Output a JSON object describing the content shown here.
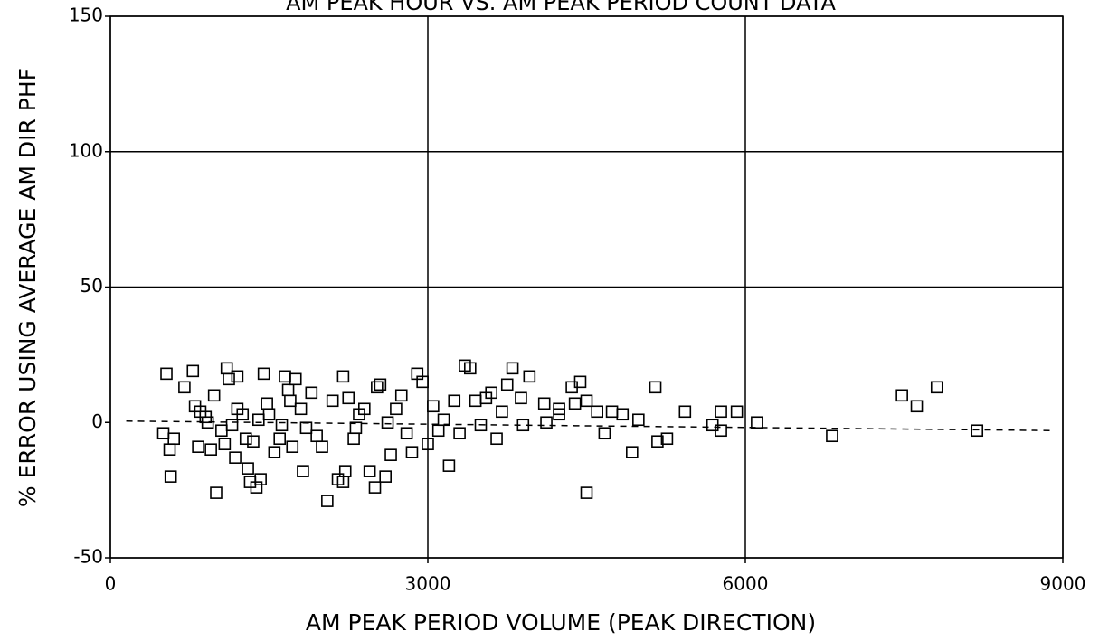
{
  "chart_data": {
    "type": "scatter",
    "title": "AM PEAK HOUR VS. AM PEAK PERIOD COUNT DATA",
    "x_label": "AM PEAK PERIOD VOLUME (PEAK DIRECTION)",
    "y_label": "% ERROR USING AVERAGE AM DIR PHF",
    "xlim": [
      0,
      9000
    ],
    "xticks": [
      0,
      3000,
      6000,
      9000
    ],
    "ylim": [
      -50,
      150
    ],
    "yticks": [
      -50,
      0,
      50,
      100,
      150
    ],
    "grid": true,
    "color": "#000000",
    "series": [
      {
        "name": "points",
        "x": [
          500,
          530,
          560,
          570,
          600,
          700,
          780,
          800,
          830,
          850,
          900,
          920,
          950,
          980,
          1000,
          1050,
          1080,
          1100,
          1120,
          1150,
          1180,
          1200,
          1200,
          1250,
          1280,
          1300,
          1320,
          1350,
          1380,
          1400,
          1420,
          1450,
          1480,
          1500,
          1550,
          1600,
          1620,
          1650,
          1680,
          1700,
          1720,
          1750,
          1800,
          1820,
          1850,
          1900,
          1950,
          2000,
          2050,
          2100,
          2150,
          2200,
          2200,
          2220,
          2250,
          2300,
          2320,
          2350,
          2400,
          2450,
          2500,
          2520,
          2550,
          2600,
          2620,
          2650,
          2700,
          2750,
          2800,
          2850,
          2900,
          2950,
          3000,
          3050,
          3100,
          3150,
          3200,
          3250,
          3300,
          3350,
          3400,
          3450,
          3500,
          3550,
          3600,
          3650,
          3700,
          3750,
          3800,
          3880,
          3900,
          3960,
          4100,
          4120,
          4240,
          4240,
          4360,
          4390,
          4440,
          4500,
          4500,
          4600,
          4670,
          4740,
          4840,
          4930,
          4990,
          5150,
          5170,
          5260,
          5430,
          5690,
          5770,
          5770,
          5920,
          6110,
          6820,
          7480,
          7620,
          7810,
          8190
        ],
        "y": [
          -4,
          18,
          -10,
          -20,
          -6,
          13,
          19,
          6,
          -9,
          4,
          2,
          0,
          -10,
          10,
          -26,
          -3,
          -8,
          20,
          16,
          -1,
          -13,
          17,
          5,
          3,
          -6,
          -17,
          -22,
          -7,
          -24,
          1,
          -21,
          18,
          7,
          3,
          -11,
          -6,
          -1,
          17,
          12,
          8,
          -9,
          16,
          5,
          -18,
          -2,
          11,
          -5,
          -9,
          -29,
          8,
          -21,
          -22,
          17,
          -18,
          9,
          -6,
          -2,
          3,
          5,
          -18,
          -24,
          13,
          14,
          -20,
          0,
          -12,
          5,
          10,
          -4,
          -11,
          18,
          15,
          -8,
          6,
          -3,
          1,
          -16,
          8,
          -4,
          21,
          20,
          8,
          -1,
          9,
          11,
          -6,
          4,
          14,
          20,
          9,
          -1,
          17,
          7,
          0,
          3,
          5,
          13,
          7,
          15,
          -26,
          8,
          4,
          -4,
          4,
          3,
          -11,
          1,
          13,
          -7,
          -6,
          4,
          -1,
          4,
          -3,
          4,
          0,
          -5,
          10,
          6,
          13,
          -3
        ]
      }
    ],
    "trend_line": {
      "x": [
        150,
        8900
      ],
      "y": [
        0.5,
        -3
      ]
    }
  }
}
